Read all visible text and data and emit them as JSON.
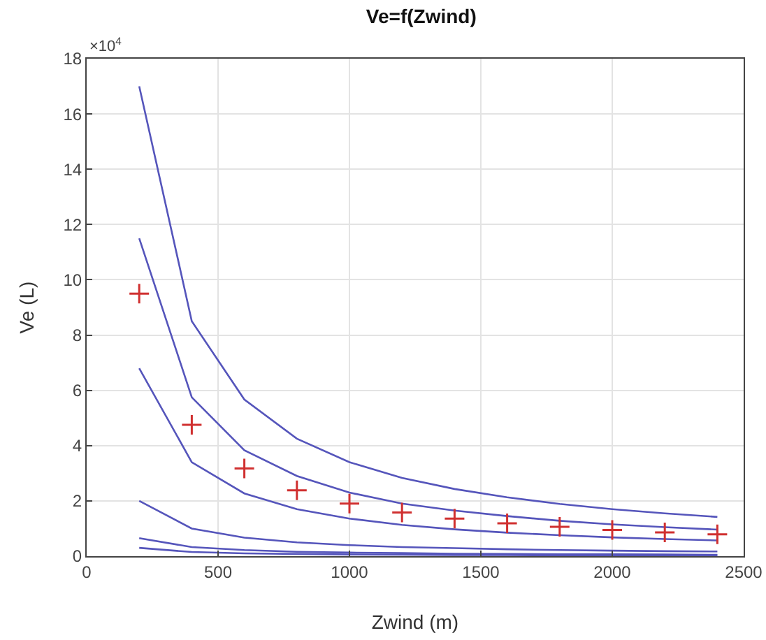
{
  "chart_data": {
    "type": "line",
    "title": "Ve=f(Zwind)",
    "xlabel": "Zwind (m)",
    "ylabel": "Ve (L)",
    "annotations": [
      "×10$^{4}$"
    ],
    "x": [
      200,
      400,
      600,
      800,
      1000,
      1200,
      1400,
      1600,
      1800,
      2000,
      2200,
      2400
    ],
    "xlim": [
      0,
      2500
    ],
    "xticks": [
      0,
      500,
      1000,
      1500,
      2000,
      2500
    ],
    "ylim": [
      0,
      18
    ],
    "yticks": [
      0,
      2,
      4,
      6,
      8,
      10,
      12,
      14,
      16,
      18
    ],
    "grid": true,
    "line_style": "solid",
    "series": [
      {
        "color": "#5555bb",
        "marker": "none",
        "values": [
          17,
          8.5,
          5.67,
          4.25,
          3.4,
          2.83,
          2.43,
          2.13,
          1.89,
          1.7,
          1.55,
          1.42
        ]
      },
      {
        "color": "#5555bb",
        "marker": "none",
        "values": [
          11.5,
          5.75,
          3.83,
          2.9,
          2.3,
          1.9,
          1.65,
          1.45,
          1.28,
          1.15,
          1.05,
          0.96
        ]
      },
      {
        "color": "#5555bb",
        "marker": "none",
        "values": [
          6.8,
          3.4,
          2.27,
          1.7,
          1.36,
          1.13,
          0.97,
          0.85,
          0.76,
          0.68,
          0.62,
          0.57
        ]
      },
      {
        "color": "#5555bb",
        "marker": "none",
        "values": [
          2.0,
          1.0,
          0.67,
          0.5,
          0.4,
          0.33,
          0.29,
          0.25,
          0.22,
          0.2,
          0.18,
          0.17
        ]
      },
      {
        "color": "#5555bb",
        "marker": "none",
        "values": [
          0.65,
          0.33,
          0.22,
          0.16,
          0.13,
          0.11,
          0.09,
          0.08,
          0.07,
          0.07,
          0.06,
          0.05
        ]
      },
      {
        "color": "#5555bb",
        "marker": "none",
        "values": [
          0.3,
          0.15,
          0.1,
          0.08,
          0.06,
          0.05,
          0.04,
          0.04,
          0.03,
          0.03,
          0.03,
          0.03
        ]
      },
      {
        "type": "scatter",
        "color": "#d03030",
        "marker": "cross",
        "values": [
          9.5,
          4.75,
          3.17,
          2.38,
          1.9,
          1.58,
          1.36,
          1.19,
          1.06,
          0.95,
          0.86,
          0.79
        ]
      }
    ]
  }
}
